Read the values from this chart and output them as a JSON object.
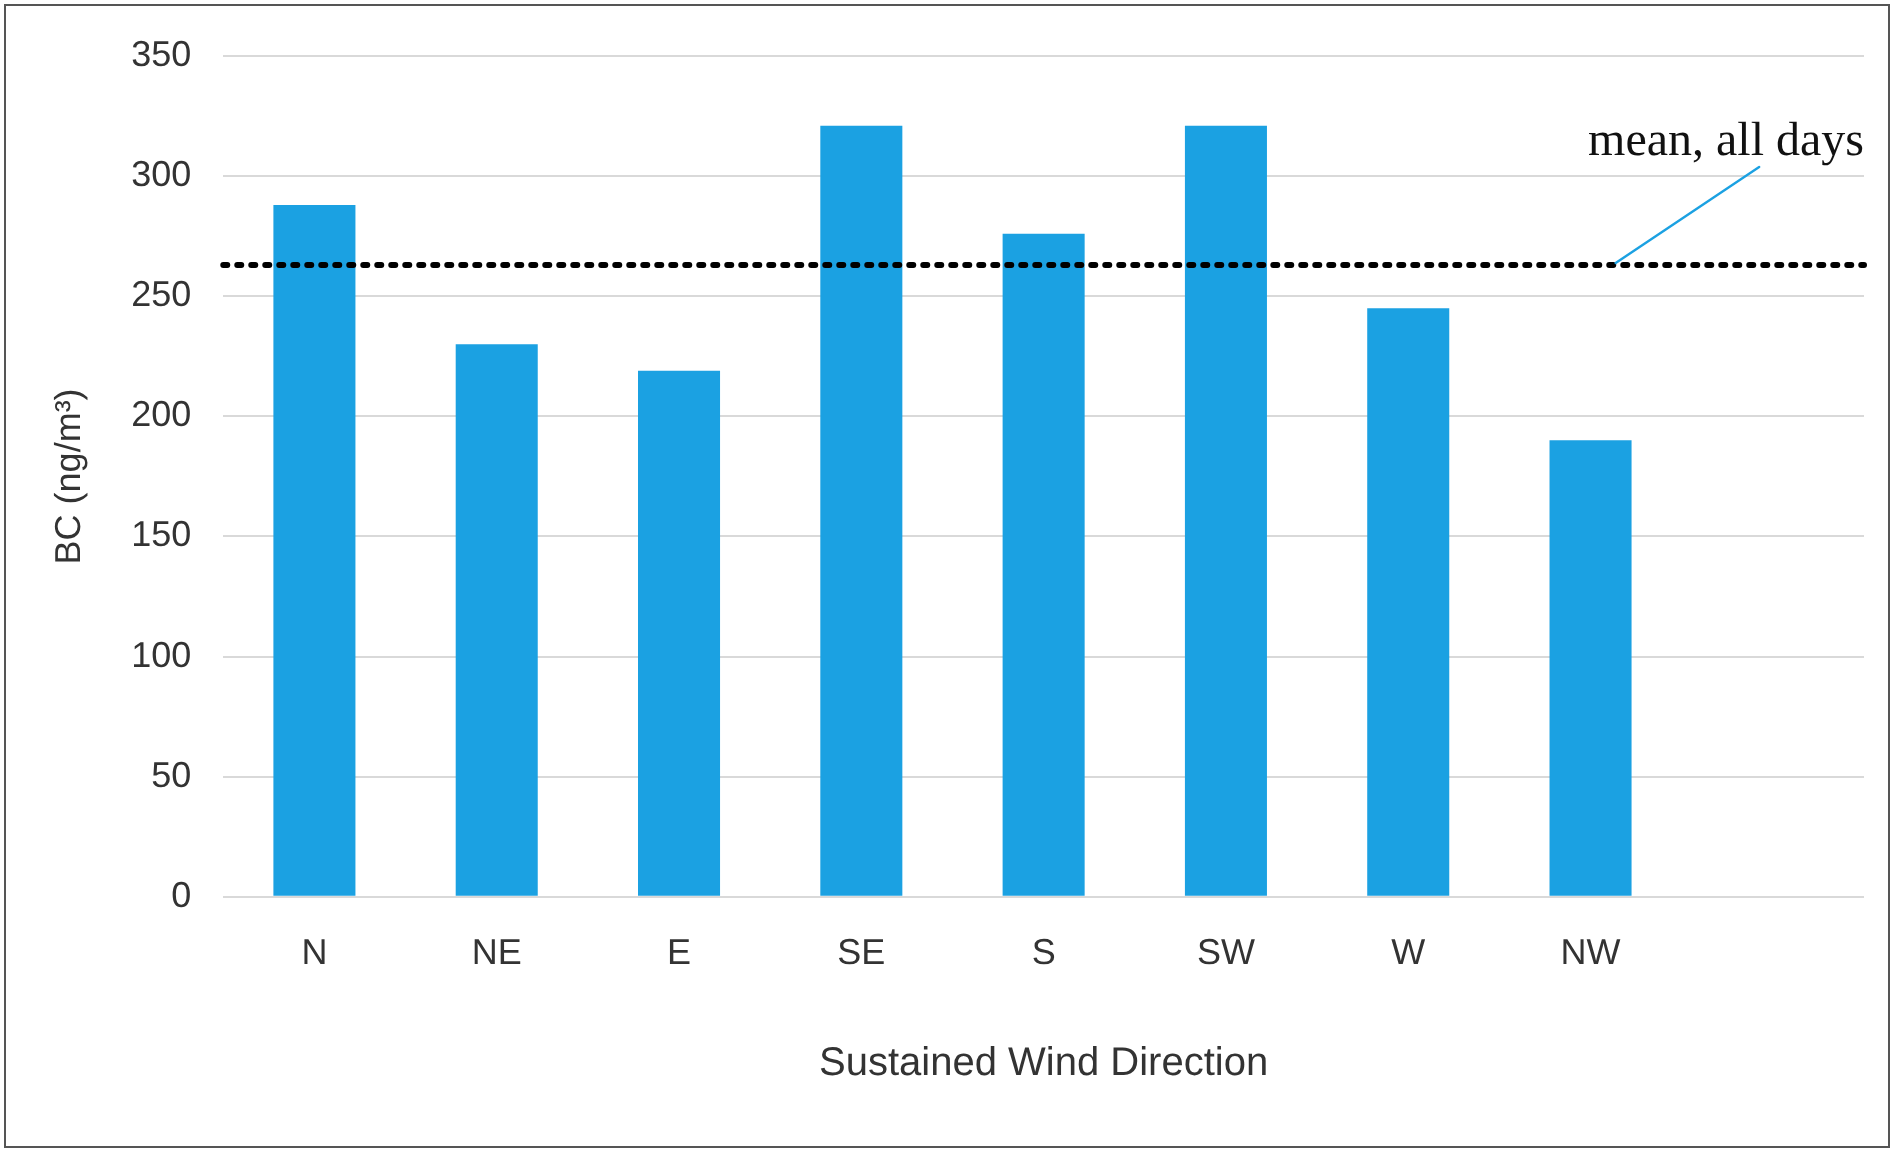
{
  "chart_data": {
    "type": "bar",
    "xlabel": "Sustained Wind Direction",
    "ylabel": "BC (ng/m³)",
    "categories": [
      "N",
      "NE",
      "E",
      "SE",
      "S",
      "SW",
      "W",
      "NW",
      null
    ],
    "values": [
      288,
      230,
      219,
      321,
      276,
      321,
      245,
      190,
      null
    ],
    "color": "#1ba1e2",
    "ylim": [
      0,
      350
    ],
    "yticks": [
      0,
      50,
      100,
      150,
      200,
      250,
      300,
      350
    ],
    "grid": "y",
    "ref_lines": [
      {
        "axis": "y",
        "value": 263,
        "label": "mean, all days",
        "color": "#000000",
        "line_style": "dotted"
      }
    ]
  }
}
